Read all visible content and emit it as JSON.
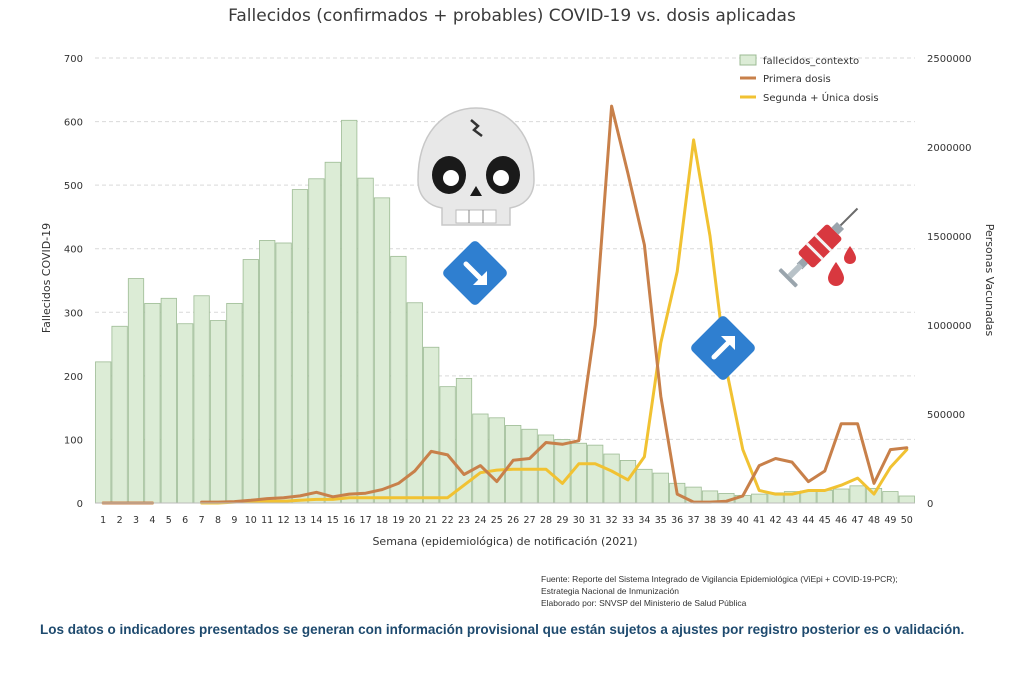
{
  "colors": {
    "bar_fill": "#dcecd6",
    "bar_stroke": "#9dbb94",
    "primera": "#c8804a",
    "segunda": "#f1c232",
    "grid": "#d9d9d9",
    "arrow_badge": "#2f7fd0",
    "note_text": "#1e4a6e"
  },
  "icons": [
    "skull-icon",
    "arrow-down-right-icon",
    "arrow-up-right-icon",
    "syringe-icon",
    "blood-drop-icon"
  ],
  "chart_data": {
    "type": "bar",
    "title": "Fallecidos (confirmados + probables) COVID-19 vs. dosis aplicadas",
    "xlabel": "Semana (epidemiológica) de notificación (2021)",
    "ylabel": "Fallecidos COVID-19",
    "y2label": "Personas Vacunadas",
    "ylim": [
      0,
      700
    ],
    "y2lim": [
      0,
      2500000
    ],
    "yticks": [
      0,
      100,
      200,
      300,
      400,
      500,
      600,
      700
    ],
    "y2ticks": [
      0,
      500000,
      1000000,
      1500000,
      2000000,
      2500000
    ],
    "grid": true,
    "legend_position": "top-right",
    "categories": [
      "1",
      "2",
      "3",
      "4",
      "5",
      "6",
      "7",
      "8",
      "9",
      "10",
      "11",
      "12",
      "13",
      "14",
      "15",
      "16",
      "17",
      "18",
      "19",
      "20",
      "21",
      "22",
      "23",
      "24",
      "25",
      "26",
      "27",
      "28",
      "29",
      "30",
      "31",
      "32",
      "33",
      "34",
      "35",
      "36",
      "37",
      "38",
      "39",
      "40",
      "41",
      "42",
      "43",
      "44",
      "45",
      "46",
      "47",
      "48",
      "49",
      "50"
    ],
    "series": [
      {
        "name": "fallecidos_contexto",
        "type": "bar",
        "axis": "left",
        "values": [
          222,
          278,
          353,
          314,
          322,
          282,
          326,
          287,
          314,
          383,
          413,
          409,
          493,
          510,
          536,
          602,
          511,
          480,
          388,
          315,
          245,
          183,
          196,
          140,
          134,
          122,
          116,
          107,
          100,
          94,
          91,
          77,
          67,
          53,
          47,
          31,
          25,
          19,
          15,
          12,
          14,
          16,
          18,
          19,
          20,
          22,
          27,
          23,
          18,
          11
        ]
      },
      {
        "name": "Primera dosis",
        "type": "line",
        "axis": "right",
        "values": [
          0,
          0,
          0,
          0,
          null,
          null,
          5000,
          5000,
          8000,
          15000,
          25000,
          30000,
          40000,
          60000,
          35000,
          50000,
          55000,
          75000,
          110000,
          180000,
          290000,
          270000,
          160000,
          210000,
          120000,
          240000,
          250000,
          340000,
          330000,
          350000,
          1000000,
          2230000,
          1850000,
          1450000,
          600000,
          50000,
          5000,
          5000,
          10000,
          40000,
          210000,
          250000,
          230000,
          120000,
          180000,
          445000,
          445000,
          110000,
          300000,
          310000
        ]
      },
      {
        "name": "Segunda + Única dosis",
        "type": "line",
        "axis": "right",
        "values": [
          0,
          0,
          0,
          0,
          null,
          null,
          0,
          0,
          5000,
          10000,
          10000,
          10000,
          15000,
          20000,
          20000,
          30000,
          30000,
          30000,
          30000,
          30000,
          30000,
          30000,
          100000,
          170000,
          185000,
          190000,
          190000,
          190000,
          110000,
          220000,
          220000,
          180000,
          130000,
          260000,
          900000,
          1300000,
          2040000,
          1500000,
          750000,
          300000,
          70000,
          50000,
          50000,
          70000,
          70000,
          100000,
          140000,
          50000,
          200000,
          300000
        ]
      }
    ]
  },
  "footer": {
    "source_line1": "Fuente: Reporte del Sistema Integrado de Vigilancia Epidemiológica (ViEpi + COVID-19-PCR);",
    "source_line2": "Estrategia Nacional de Inmunización",
    "source_line3": "Elaborado por: SNVSP del Ministerio de Salud Pública",
    "note": "Los datos o indicadores presentados se generan con información provisional que están sujetos a ajustes por registro posterior es o validación."
  }
}
